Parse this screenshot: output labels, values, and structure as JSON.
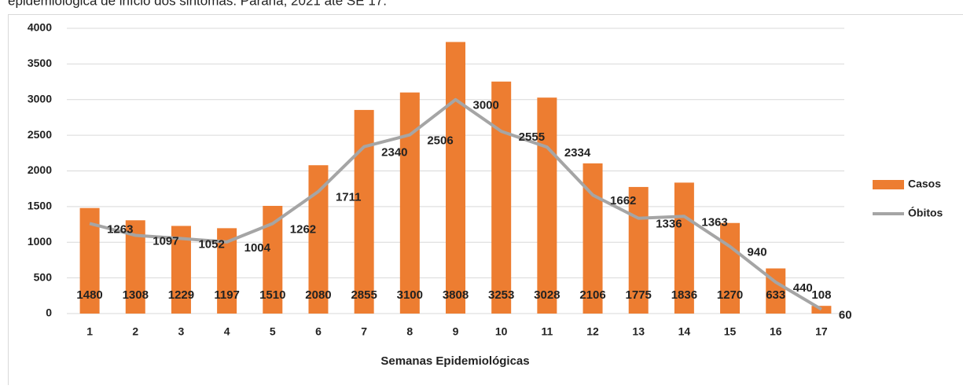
{
  "chart_data": {
    "type": "bar_line",
    "title": "epidemiológica de início dos sintomas. Paraná, 2021 até SE 17.",
    "x_label": "Semanas Epidemiológicas",
    "categories": [
      "1",
      "2",
      "3",
      "4",
      "5",
      "6",
      "7",
      "8",
      "9",
      "10",
      "11",
      "12",
      "13",
      "14",
      "15",
      "16",
      "17"
    ],
    "series": [
      {
        "name": "Casos",
        "type": "bar",
        "color": "#ED7D31",
        "values": [
          1480,
          1308,
          1229,
          1197,
          1510,
          2080,
          2855,
          3100,
          3808,
          3253,
          3028,
          2106,
          1775,
          1836,
          1270,
          633,
          108
        ]
      },
      {
        "name": "Óbitos",
        "type": "line",
        "color": "#A5A5A5",
        "values": [
          1263,
          1097,
          1052,
          1004,
          1262,
          1711,
          2340,
          2506,
          3000,
          2555,
          2334,
          1662,
          1336,
          1363,
          940,
          440,
          60
        ]
      }
    ],
    "ylim": [
      0,
      4000
    ],
    "yticks": [
      0,
      500,
      1000,
      1500,
      2000,
      2500,
      3000,
      3500,
      4000
    ],
    "grid": true,
    "legend": "right"
  }
}
